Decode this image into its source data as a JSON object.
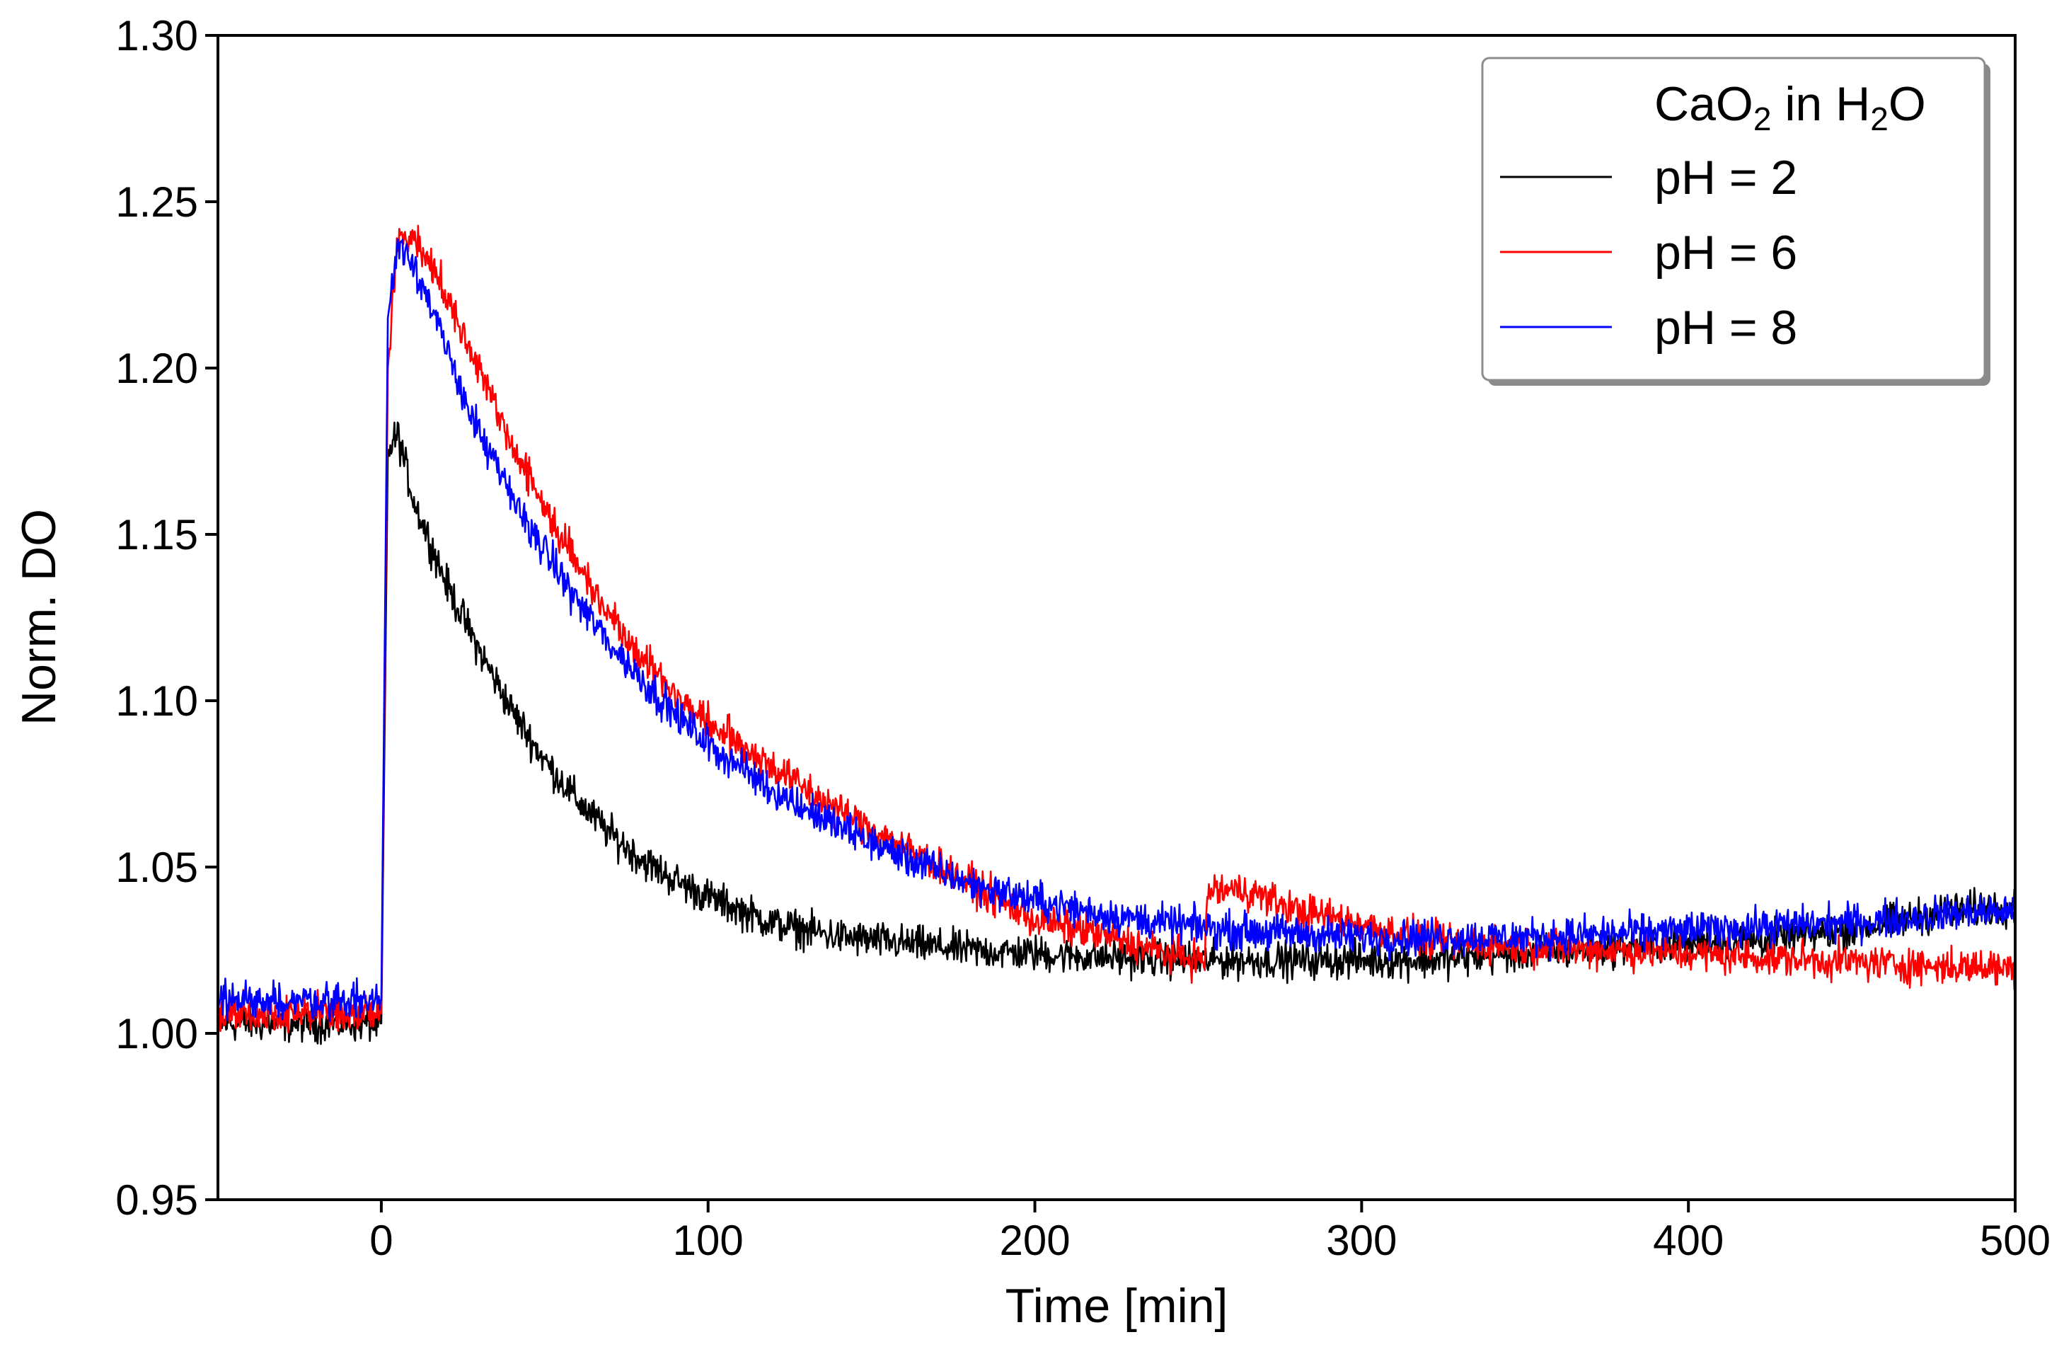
{
  "chart_data": {
    "type": "line",
    "title": "",
    "xlabel": "Time [min]",
    "ylabel": "Norm. DO",
    "xlim": [
      -50,
      500
    ],
    "ylim": [
      0.95,
      1.3
    ],
    "xticks": [
      0,
      100,
      200,
      300,
      400,
      500
    ],
    "xtick_labels": [
      "0",
      "100",
      "200",
      "300",
      "400",
      "500"
    ],
    "yticks": [
      0.95,
      1.0,
      1.05,
      1.1,
      1.15,
      1.2,
      1.25,
      1.3
    ],
    "ytick_labels": [
      "0.95",
      "1.00",
      "1.05",
      "1.10",
      "1.15",
      "1.20",
      "1.25",
      "1.30"
    ],
    "grid": false,
    "legend": {
      "title_parts": [
        "CaO",
        "2",
        " in H",
        "2",
        "O"
      ],
      "placement": "top-right"
    },
    "series": [
      {
        "name": "pH = 2",
        "color": "#000000",
        "noise": 0.0045,
        "x": [
          -50,
          -1,
          0,
          2,
          5,
          10,
          20,
          30,
          40,
          50,
          60,
          70,
          80,
          90,
          100,
          110,
          120,
          140,
          160,
          180,
          200,
          220,
          250,
          280,
          300,
          320,
          350,
          380,
          400,
          420,
          440,
          460,
          480,
          500
        ],
        "y": [
          1.003,
          1.003,
          1.003,
          1.175,
          1.18,
          1.16,
          1.135,
          1.115,
          1.097,
          1.082,
          1.07,
          1.06,
          1.052,
          1.046,
          1.041,
          1.037,
          1.033,
          1.029,
          1.027,
          1.025,
          1.024,
          1.023,
          1.022,
          1.022,
          1.022,
          1.022,
          1.024,
          1.026,
          1.027,
          1.028,
          1.03,
          1.033,
          1.037,
          1.038
        ]
      },
      {
        "name": "pH = 6",
        "color": "#ff0000",
        "noise": 0.0045,
        "x": [
          -50,
          -1,
          0,
          2,
          5,
          10,
          20,
          30,
          40,
          50,
          60,
          70,
          80,
          90,
          100,
          110,
          120,
          140,
          160,
          180,
          200,
          220,
          240,
          252,
          253,
          265,
          280,
          300,
          320,
          350,
          380,
          400,
          420,
          440,
          460,
          480,
          500
        ],
        "y": [
          1.006,
          1.006,
          1.006,
          1.2,
          1.238,
          1.24,
          1.222,
          1.2,
          1.177,
          1.158,
          1.141,
          1.126,
          1.113,
          1.102,
          1.093,
          1.087,
          1.08,
          1.067,
          1.056,
          1.045,
          1.034,
          1.03,
          1.024,
          1.022,
          1.043,
          1.043,
          1.037,
          1.033,
          1.028,
          1.026,
          1.025,
          1.024,
          1.023,
          1.022,
          1.021,
          1.02,
          1.02
        ]
      },
      {
        "name": "pH = 8",
        "color": "#0000ff",
        "noise": 0.0045,
        "x": [
          -50,
          -1,
          0,
          2,
          5,
          10,
          20,
          30,
          40,
          50,
          60,
          70,
          80,
          90,
          100,
          110,
          120,
          140,
          160,
          180,
          200,
          220,
          240,
          260,
          280,
          300,
          320,
          350,
          380,
          400,
          420,
          440,
          460,
          480,
          500
        ],
        "y": [
          1.01,
          1.01,
          1.01,
          1.215,
          1.238,
          1.232,
          1.205,
          1.18,
          1.161,
          1.145,
          1.13,
          1.117,
          1.106,
          1.096,
          1.087,
          1.08,
          1.073,
          1.062,
          1.053,
          1.045,
          1.04,
          1.036,
          1.033,
          1.031,
          1.03,
          1.029,
          1.029,
          1.029,
          1.03,
          1.031,
          1.032,
          1.033,
          1.034,
          1.036,
          1.037
        ]
      }
    ]
  }
}
